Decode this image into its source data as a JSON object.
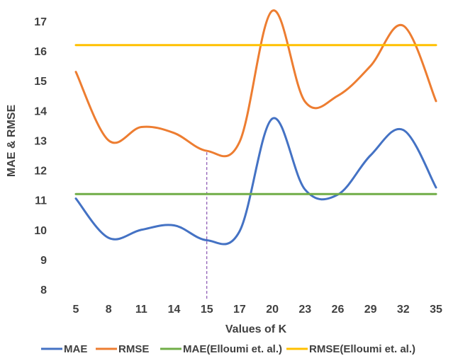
{
  "chart_data": {
    "type": "line",
    "title": "",
    "xlabel": "Values of K",
    "ylabel": "MAE & RMSE",
    "categories": [
      "5",
      "8",
      "11",
      "14",
      "15",
      "17",
      "20",
      "23",
      "26",
      "29",
      "32",
      "35"
    ],
    "ylim": [
      8,
      17
    ],
    "yticks": [
      8,
      9,
      10,
      11,
      12,
      13,
      14,
      15,
      16,
      17
    ],
    "grid": false,
    "marker_category": "15",
    "legend_position": "bottom",
    "series": [
      {
        "name": "MAE",
        "color": "#4472C4",
        "values": [
          11.05,
          9.73,
          10.0,
          10.15,
          9.65,
          9.95,
          13.73,
          11.35,
          11.18,
          12.5,
          13.35,
          11.42
        ]
      },
      {
        "name": "RMSE",
        "color": "#ED7D31",
        "values": [
          15.3,
          13.0,
          13.45,
          13.25,
          12.65,
          12.95,
          17.35,
          14.3,
          14.5,
          15.5,
          16.85,
          14.32
        ]
      },
      {
        "name": "MAE(Elloumi et. al.)",
        "color": "#70AD47",
        "values": [
          11.2,
          11.2,
          11.2,
          11.2,
          11.2,
          11.2,
          11.2,
          11.2,
          11.2,
          11.2,
          11.2,
          11.2
        ]
      },
      {
        "name": "RMSE(Elloumi et. al.)",
        "color": "#FFC000",
        "values": [
          16.2,
          16.2,
          16.2,
          16.2,
          16.2,
          16.2,
          16.2,
          16.2,
          16.2,
          16.2,
          16.2,
          16.2
        ]
      }
    ]
  }
}
